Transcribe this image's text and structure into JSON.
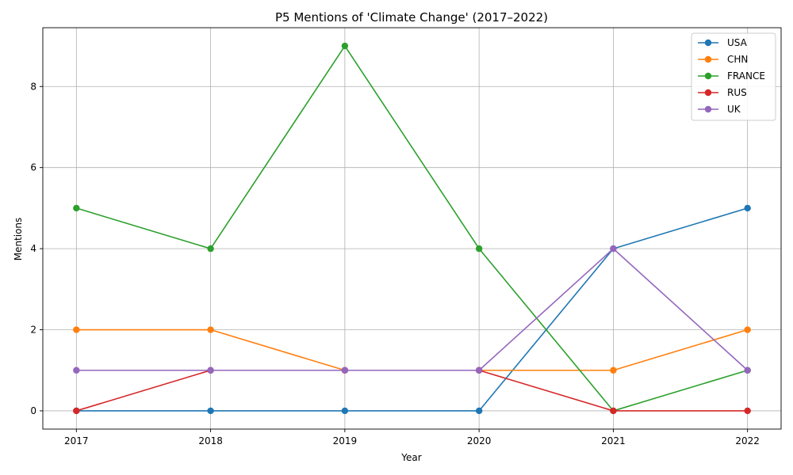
{
  "chart_data": {
    "type": "line",
    "title": "P5 Mentions of 'Climate Change' (2017–2022)",
    "xlabel": "Year",
    "ylabel": "Mentions",
    "x": [
      2017,
      2018,
      2019,
      2020,
      2021,
      2022
    ],
    "x_tick_labels": [
      "2017",
      "2018",
      "2019",
      "2020",
      "2021",
      "2022"
    ],
    "y_ticks": [
      0,
      2,
      4,
      6,
      8
    ],
    "y_tick_labels": [
      "0",
      "2",
      "4",
      "6",
      "8"
    ],
    "xlim": [
      2016.75,
      2022.25
    ],
    "ylim": [
      -0.45,
      9.45
    ],
    "grid": true,
    "legend_position": "top-right",
    "series": [
      {
        "name": "USA",
        "color": "#1f77b4",
        "values": [
          0,
          0,
          0,
          0,
          4,
          5
        ]
      },
      {
        "name": "CHN",
        "color": "#ff7f0e",
        "values": [
          2,
          2,
          1,
          1,
          1,
          2
        ]
      },
      {
        "name": "FRANCE",
        "color": "#2ca02c",
        "values": [
          5,
          4,
          9,
          4,
          0,
          1
        ]
      },
      {
        "name": "RUS",
        "color": "#d62728",
        "values": [
          0,
          1,
          1,
          1,
          0,
          0
        ]
      },
      {
        "name": "UK",
        "color": "#9467bd",
        "values": [
          1,
          1,
          1,
          1,
          4,
          1
        ]
      }
    ]
  }
}
